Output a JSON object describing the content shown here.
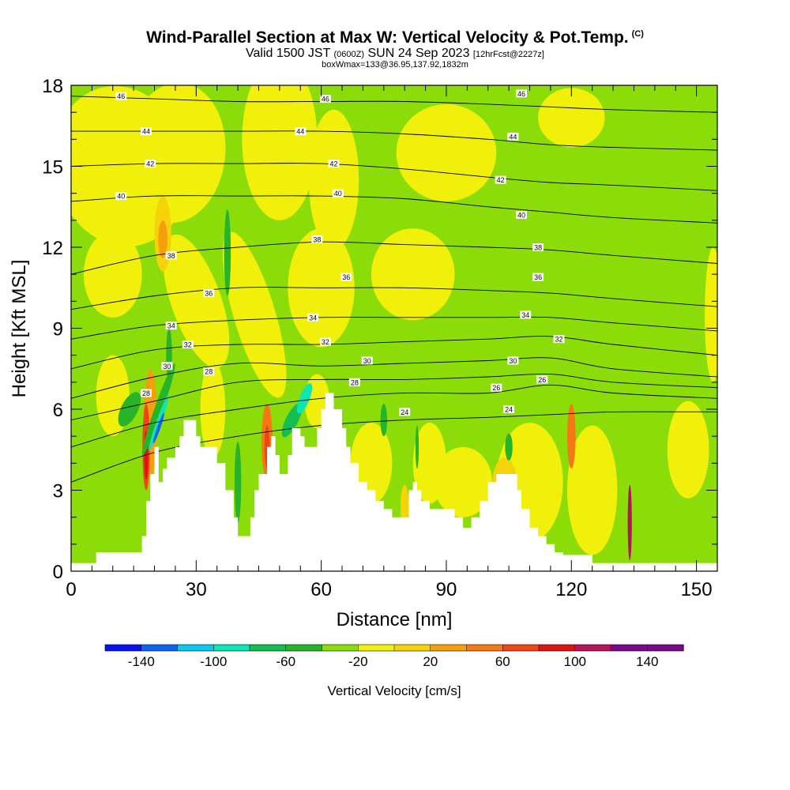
{
  "title": {
    "main": "Wind-Parallel Section at Max W: Vertical Velocity & Pot.Temp.",
    "copyright": "(C)",
    "valid_a": "Valid 1500 JST",
    "valid_utc": "(0600Z)",
    "valid_b": "SUN 24 Sep 2023",
    "forecast": "[12hrFcst@2227z]",
    "box": "boxWmax=133@36.95,137.92,1832m"
  },
  "chart_data": {
    "type": "heatmap",
    "xlabel": "Distance [nm]",
    "ylabel": "Height [Kft MSL]",
    "xlim": [
      0,
      155
    ],
    "ylim": [
      0,
      18
    ],
    "x_ticks": [
      0,
      30,
      60,
      90,
      120,
      150
    ],
    "y_ticks": [
      0,
      3,
      6,
      9,
      12,
      15,
      18
    ],
    "grid": false,
    "colorbar": {
      "label": "Vertical Velocity [cm/s]",
      "tick_labels": [
        "-140",
        "-100",
        "-60",
        "-20",
        "20",
        "60",
        "100",
        "140"
      ],
      "bin_edges": [
        -160,
        -140,
        -120,
        -100,
        -80,
        -60,
        -40,
        -20,
        0,
        20,
        40,
        60,
        80,
        100,
        120,
        140,
        160
      ],
      "colors": [
        "#0a14f0",
        "#0a64f0",
        "#0ac8f0",
        "#0ae6b4",
        "#14be50",
        "#28b428",
        "#8cdc0a",
        "#f0f00a",
        "#f5d20a",
        "#f5a00a",
        "#f57814",
        "#f04614",
        "#dc1414",
        "#b4145a",
        "#780a8c",
        "#780a8c"
      ]
    },
    "terrain_kft": [
      [
        0,
        0.3
      ],
      [
        5,
        0.3
      ],
      [
        6,
        0.7
      ],
      [
        15,
        0.7
      ],
      [
        17,
        1.3
      ],
      [
        18,
        2.6
      ],
      [
        19,
        3.6
      ],
      [
        20,
        4.6
      ],
      [
        21,
        3.3
      ],
      [
        22,
        3.8
      ],
      [
        23,
        4.2
      ],
      [
        25,
        4.6
      ],
      [
        26,
        5.0
      ],
      [
        27,
        5.6
      ],
      [
        29,
        5.6
      ],
      [
        30,
        5.0
      ],
      [
        31,
        4.6
      ],
      [
        33,
        4.6
      ],
      [
        35,
        4.0
      ],
      [
        37,
        3.0
      ],
      [
        39,
        2.0
      ],
      [
        40,
        1.3
      ],
      [
        42,
        1.3
      ],
      [
        43,
        2.0
      ],
      [
        44,
        3.0
      ],
      [
        45,
        3.6
      ],
      [
        47,
        4.6
      ],
      [
        48,
        5.0
      ],
      [
        49,
        4.3
      ],
      [
        50,
        3.6
      ],
      [
        51,
        3.6
      ],
      [
        52,
        4.3
      ],
      [
        53,
        5.3
      ],
      [
        55,
        5.0
      ],
      [
        56,
        4.6
      ],
      [
        58,
        4.6
      ],
      [
        59,
        5.3
      ],
      [
        60,
        6.0
      ],
      [
        61,
        6.6
      ],
      [
        62,
        6.6
      ],
      [
        63,
        6.0
      ],
      [
        65,
        5.3
      ],
      [
        66,
        4.6
      ],
      [
        67,
        4.0
      ],
      [
        69,
        3.3
      ],
      [
        71,
        3.0
      ],
      [
        73,
        2.6
      ],
      [
        75,
        2.3
      ],
      [
        77,
        2.0
      ],
      [
        80,
        2.0
      ],
      [
        81,
        3.0
      ],
      [
        82,
        3.3
      ],
      [
        83,
        3.0
      ],
      [
        84,
        2.6
      ],
      [
        86,
        2.3
      ],
      [
        88,
        2.3
      ],
      [
        90,
        2.3
      ],
      [
        92,
        2.0
      ],
      [
        94,
        1.6
      ],
      [
        96,
        2.0
      ],
      [
        98,
        2.6
      ],
      [
        100,
        3.3
      ],
      [
        102,
        3.6
      ],
      [
        105,
        3.6
      ],
      [
        107,
        3.0
      ],
      [
        108,
        2.3
      ],
      [
        110,
        1.6
      ],
      [
        112,
        1.3
      ],
      [
        114,
        1.0
      ],
      [
        116,
        0.7
      ],
      [
        118,
        0.6
      ],
      [
        122,
        0.6
      ],
      [
        125,
        0.3
      ],
      [
        130,
        0.3
      ],
      [
        155,
        0.3
      ]
    ],
    "theta_contours": [
      {
        "label": "24",
        "x": [
          0,
          20,
          40,
          60,
          80,
          100,
          115,
          130,
          155
        ],
        "y": [
          3.3,
          4.4,
          5.0,
          5.4,
          5.6,
          5.7,
          5.8,
          5.9,
          5.9
        ],
        "labels_at": [
          [
            80,
            5.9
          ],
          [
            105,
            6.0
          ]
        ]
      },
      {
        "label": "26",
        "x": [
          0,
          20,
          40,
          60,
          80,
          100,
          115,
          130,
          155
        ],
        "y": [
          4.6,
          5.5,
          6.0,
          6.4,
          6.6,
          6.6,
          6.9,
          6.6,
          6.4
        ],
        "labels_at": [
          [
            102,
            6.8
          ],
          [
            113,
            7.1
          ]
        ]
      },
      {
        "label": "28",
        "x": [
          0,
          20,
          40,
          60,
          80,
          100,
          115,
          130,
          155
        ],
        "y": [
          5.6,
          6.3,
          7.0,
          7.1,
          7.1,
          7.2,
          7.3,
          7.0,
          6.8
        ],
        "labels_at": [
          [
            18,
            6.6
          ],
          [
            33,
            7.4
          ],
          [
            68,
            7.0
          ]
        ]
      },
      {
        "label": "30",
        "x": [
          0,
          20,
          40,
          60,
          80,
          100,
          115,
          130,
          155
        ],
        "y": [
          6.4,
          7.2,
          7.7,
          7.6,
          7.7,
          7.8,
          7.9,
          7.5,
          7.2
        ],
        "labels_at": [
          [
            23,
            7.6
          ],
          [
            71,
            7.8
          ],
          [
            106,
            7.8
          ]
        ]
      },
      {
        "label": "32",
        "x": [
          0,
          20,
          40,
          60,
          80,
          100,
          115,
          130,
          155
        ],
        "y": [
          7.5,
          8.2,
          8.4,
          8.4,
          8.5,
          8.6,
          8.7,
          8.4,
          8.0
        ],
        "labels_at": [
          [
            28,
            8.4
          ],
          [
            61,
            8.5
          ],
          [
            117,
            8.6
          ]
        ]
      },
      {
        "label": "34",
        "x": [
          0,
          20,
          40,
          60,
          80,
          100,
          115,
          130,
          155
        ],
        "y": [
          8.6,
          9.1,
          9.3,
          9.4,
          9.4,
          9.4,
          9.4,
          9.2,
          8.9
        ],
        "labels_at": [
          [
            24,
            9.1
          ],
          [
            58,
            9.4
          ],
          [
            109,
            9.5
          ]
        ]
      },
      {
        "label": "36",
        "x": [
          0,
          20,
          40,
          60,
          80,
          100,
          115,
          130,
          155
        ],
        "y": [
          9.7,
          10.2,
          10.5,
          10.5,
          10.5,
          10.4,
          10.3,
          10.1,
          9.8
        ],
        "labels_at": [
          [
            33,
            10.3
          ],
          [
            66,
            10.9
          ],
          [
            112,
            10.9
          ]
        ]
      },
      {
        "label": "38",
        "x": [
          0,
          20,
          40,
          60,
          80,
          100,
          115,
          130,
          155
        ],
        "y": [
          11.0,
          11.7,
          12.0,
          12.2,
          12.1,
          12.0,
          11.9,
          11.7,
          11.4
        ],
        "labels_at": [
          [
            24,
            11.7
          ],
          [
            59,
            12.3
          ],
          [
            112,
            12.0
          ]
        ]
      },
      {
        "label": "40",
        "x": [
          0,
          20,
          40,
          60,
          80,
          100,
          115,
          130,
          155
        ],
        "y": [
          13.7,
          13.9,
          13.9,
          13.9,
          13.8,
          13.5,
          13.3,
          13.1,
          12.9
        ],
        "labels_at": [
          [
            12,
            13.9
          ],
          [
            64,
            14.0
          ],
          [
            108,
            13.2
          ]
        ]
      },
      {
        "label": "42",
        "x": [
          0,
          20,
          40,
          60,
          80,
          100,
          115,
          130,
          155
        ],
        "y": [
          15.0,
          15.1,
          15.1,
          15.1,
          14.9,
          14.6,
          14.4,
          14.3,
          14.1
        ],
        "labels_at": [
          [
            19,
            15.1
          ],
          [
            63,
            15.1
          ],
          [
            103,
            14.5
          ]
        ]
      },
      {
        "label": "44",
        "x": [
          0,
          20,
          40,
          60,
          80,
          100,
          115,
          130,
          155
        ],
        "y": [
          16.3,
          16.3,
          16.3,
          16.3,
          16.2,
          16.0,
          15.8,
          15.7,
          15.6
        ],
        "labels_at": [
          [
            18,
            16.3
          ],
          [
            55,
            16.3
          ],
          [
            106,
            16.1
          ]
        ]
      },
      {
        "label": "46",
        "x": [
          0,
          20,
          40,
          60,
          80,
          100,
          115,
          130,
          155
        ],
        "y": [
          17.6,
          17.5,
          17.4,
          17.4,
          17.4,
          17.3,
          17.2,
          17.1,
          17.0
        ],
        "labels_at": [
          [
            12,
            17.6
          ],
          [
            61,
            17.5
          ],
          [
            108,
            17.7
          ]
        ]
      }
    ]
  }
}
